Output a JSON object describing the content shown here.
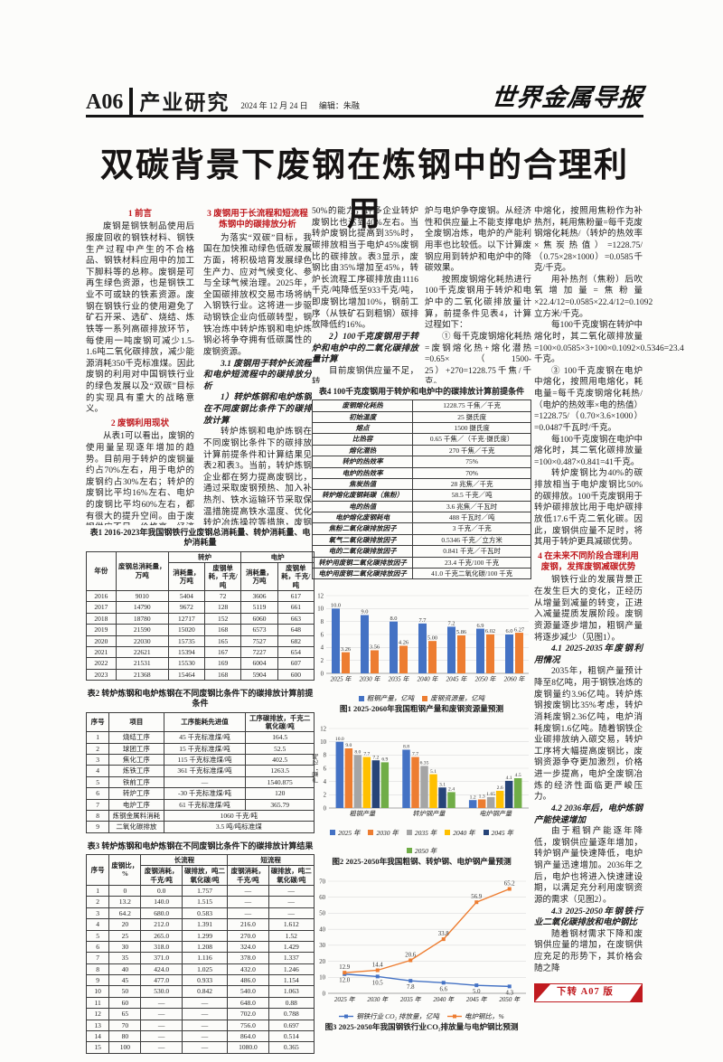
{
  "page": {
    "number": "A06",
    "section": "产业研究",
    "date": "2024 年 12 月 24 日",
    "editor": "编辑：朱融",
    "masthead": "世界金属导报",
    "title": "双碳背景下废钢在炼钢中的合理利用",
    "continuation": "下转 A07 版"
  },
  "colors": {
    "heading_red": "#c01a1f",
    "bar_blue": "#4472C4",
    "bar_orange": "#ED7D31",
    "bar_gray": "#A5A5A5",
    "bar_gold": "#FFC000",
    "bar_navy": "#264478",
    "bar_green": "#70AD47"
  },
  "columns": {
    "col1": [
      {
        "t": "h",
        "x": "1 前言"
      },
      {
        "t": "p",
        "x": "废钢是钢铁制品使用后报废回收的钢铁材料、钢铁生产过程中产生的不合格品、钢铁材料应用中的加工下脚料等的总称。废钢是可再生绿色资源，也是钢铁工业不可或缺的铁素资源。废钢在钢铁行业的使用避免了矿石开采、选矿、烧结、炼铁等一系列高碳排放环节，每使用一吨废钢可减少1.5-1.6吨二氧化碳排放，减少能源消耗350千克标准煤。因此废钢的利用对中国钢铁行业的绿色发展以及“双碳”目标的实现具有重大的战略意义。"
      },
      {
        "t": "h",
        "x": "2 废钢利用现状"
      },
      {
        "t": "p",
        "x": "从表1可以看出，废钢的使用量呈现逐年增加的趋势。目前用于转炉的废钢量约占70%左右，用于电炉的废钢约占30%左右；转炉的废钢比平均16%左右、电炉的废钢比平均60%左右，都有很大的提升空间。由于废钢供应不足，价格高，经济性差，造成电炉配加大比例的铁水。"
      }
    ],
    "col2": [
      {
        "t": "h",
        "x": "3 废钢用于长流程和短流程炼钢中的碳排放分析"
      },
      {
        "t": "p",
        "x": "为落实“双碳”目标，我国在加快推动绿色低碳发展方面，将积极培育发展绿色生产力、应对气候变化、参与全球气候治理。2025年，全国碳排放权交易市场将纳入钢铁行业。这将进一步驱动钢铁企业向低碳转型，钢铁冶炼中转炉炼钢和电炉炼钢必将争夺拥有低碳属性的废钢资源。"
      },
      {
        "t": "s",
        "x": "3.1 废钢用于转炉长流程和电炉短流程中的碳排放分析"
      },
      {
        "t": "s",
        "x": "1）转炉炼钢和电炉炼钢在不同废钢比条件下的碳排放计算"
      },
      {
        "t": "p",
        "x": "转炉炼钢和电炉炼钢在不同废钢比条件下的碳排放计算前提条件和计算结果见表2和表3。当前，转炉炼钢企业都在努力提高废钢比，通过采取废钢预热、加入补热剂、铁水运输环节采取保温措施提高铁水温度、优化转炉冶炼操控等措施，废钢比大幅提升。据报道，先进企业废钢比已达到"
      }
    ],
    "col3": [
      {
        "t": "c",
        "x": "50%的能力，许多企业转炉废钢比也达到40%左右。当转炉废钢比提高到35%时，碳排放相当于电炉45%废钢比的碳排放。表3显示，废钢比由35%增加至45%，转炉长流程工序碳排放由1116千克/吨降低至933千克/吨，即废钢比增加10%，钢前工序（从铁矿石到粗钢）碳排放降低约16%。"
      },
      {
        "t": "s",
        "x": "2）100千克废钢用于转炉和电炉中的二氧化碳排放量计算"
      },
      {
        "t": "p",
        "x": "目前废钢供应量不足，转"
      }
    ],
    "col4": [
      {
        "t": "c",
        "x": "炉与电炉争夺废钢。从经济性和供应量上不能支撑电炉全废钢冶炼，电炉的产能利用率也比较低。以下计算废钢应用到转炉和电炉中的降碳效果。"
      },
      {
        "t": "p",
        "x": "按照废钢熔化耗热进行100千克废钢用于转炉和电炉中的二氧化碳排放量计算，前提条件见表4，计算过程如下："
      },
      {
        "t": "p",
        "x": "① 每千克废钢熔化耗热=废钢熔化热+熔化潜热=0.65×（1500-25）+270=1228.75千焦/千克。"
      },
      {
        "t": "p",
        "x": "② 100千克废钢在转炉"
      }
    ],
    "col5": [
      {
        "t": "c",
        "x": "中熔化，按照用焦粉作为补热剂，耗用焦粉量=每千克废钢熔化耗热/（转炉的热效率×焦炭热值）=1228.75/（0.75×28×1000）=0.0585千克/千克。"
      },
      {
        "t": "p",
        "x": "用补热剂（焦粉）后吹氧增加量=焦粉量×22.4/12=0.0585×22.4/12=0.1092立方米/千克。"
      },
      {
        "t": "p",
        "x": "每100千克废钢在转炉中熔化时，其二氧化碳排放量=100×0.0585×3+100×0.1092×0.5346=23.4千克。"
      },
      {
        "t": "p",
        "x": "③ 100千克废钢在电炉中熔化，按照用电熔化，耗电量=每千克废钢熔化耗热/（电炉的热效率×电的热值）=1228.75/（0.70×3.6×1000）=0.0487千瓦时/千克。"
      },
      {
        "t": "p",
        "x": "每100千克废钢在电炉中熔化时，其二氧化碳排放量=100×0.487×0.841=41千克。"
      },
      {
        "t": "p",
        "x": "转炉废钢比为40%的碳排放相当于电炉废钢比50%的碳排放。100千克废钢用于转炉碳排放比用于电炉碳排放低17.6千克二氧化碳。因此，废钢供应量不足时，将其用于转炉更具减碳优势。"
      },
      {
        "t": "h",
        "x": "4 在未来不同阶段合理利用废钢，发挥废钢减碳优势"
      },
      {
        "t": "p",
        "x": "钢铁行业的发展背景正在发生巨大的变化，正经历从增量到减量的转变，正进入减量提质发展阶段。废钢资源量逐步增加，粗钢产量将逐步减少（见图1）。"
      },
      {
        "t": "s",
        "x": "4.1 2025-2035年废钢利用情况"
      },
      {
        "t": "p",
        "x": "2035年，粗钢产量预计降至8亿吨，用于钢铁冶炼的废钢量约3.96亿吨。转炉炼钢按废钢比35%考虑，转炉消耗废钢2.36亿吨，电炉消耗废钢1.6亿吨。随着钢铁企业碳排放纳入碳交易，转炉工序将大幅提高废钢比，废钢资源争夺更加激烈，价格进一步提高，电炉全废钢冶炼的经济性面临更严峻压力。"
      },
      {
        "t": "s",
        "x": "4.2 2036年后，电炉炼钢产能快速增加"
      },
      {
        "t": "p",
        "x": "由于粗钢产能逐年降低，废钢供应量逐年增加，转炉钢产量快速降低，电炉钢产量迅速增加。2036年之后，电炉也将进入快速建设期，以满足充分利用废钢资源的需求（见图2）。"
      },
      {
        "t": "s",
        "x": "4.3 2025-2050年钢铁行业二氧化碳排放和电炉钢比"
      },
      {
        "t": "p",
        "x": "随着钢材需求下降和废钢供应量的增加，在废钢供应充足的形势下，其价格会随之降"
      }
    ]
  },
  "tables": {
    "t1": {
      "title": "表1 2016-2023年我国钢铁行业废钢总消耗量、转炉消耗量、电炉消耗量",
      "top": [
        "年份",
        "废钢总消耗量，万吨",
        "转炉",
        "电炉"
      ],
      "sub": [
        "消耗量，万吨",
        "废钢单耗，千克/吨",
        "消耗量，万吨",
        "废钢单耗，千克/吨"
      ],
      "rows": [
        [
          "2016",
          "9010",
          "5404",
          "72",
          "3606",
          "617"
        ],
        [
          "2017",
          "14790",
          "9672",
          "128",
          "5119",
          "661"
        ],
        [
          "2018",
          "18780",
          "12717",
          "152",
          "6060",
          "663"
        ],
        [
          "2019",
          "21590",
          "15020",
          "168",
          "6573",
          "648"
        ],
        [
          "2020",
          "22030",
          "15735",
          "165",
          "7527",
          "682"
        ],
        [
          "2021",
          "22621",
          "15394",
          "167",
          "7227",
          "654"
        ],
        [
          "2022",
          "21531",
          "15530",
          "169",
          "6004",
          "607"
        ],
        [
          "2023",
          "21368",
          "15464",
          "168",
          "5904",
          "600"
        ]
      ]
    },
    "t2": {
      "title": "表2 转炉炼钢和电炉炼钢在不同废钢比条件下的碳排放计算前提条件",
      "header": [
        "序号",
        "项目",
        "工序能耗先进值",
        "工序碳排放，千克二氧化碳/吨"
      ],
      "rows": [
        [
          "1",
          "烧结工序",
          "45 千克标准煤/吨",
          "164.5"
        ],
        [
          "2",
          "球团工序",
          "15 千克标准煤/吨",
          "52.5"
        ],
        [
          "3",
          "焦化工序",
          "115 千克标准煤/吨",
          "402.5"
        ],
        [
          "4",
          "炼铁工序",
          "361 千克标准煤/吨",
          "1263.5"
        ],
        [
          "5",
          "铁前工序",
          "—",
          "1540.875"
        ],
        [
          "6",
          "转炉工序",
          "-30 千克标准煤/吨",
          "120"
        ],
        [
          "7",
          "电炉工序",
          "61 千克标准煤/吨",
          "365.79"
        ],
        [
          "8",
          "炼钢金属料消耗",
          "1060 千克/吨"
        ],
        [
          "9",
          "二氧化碳排放",
          "3.5 吨/吨标准煤"
        ]
      ]
    },
    "t3": {
      "title": "表3 转炉炼钢和电炉炼钢在不同废钢比条件下的碳排放计算结果",
      "top": [
        "序号",
        "废钢比，%",
        "长流程",
        "短流程"
      ],
      "sub": [
        "废钢消耗，千克/吨",
        "碳排放，吨二氧化碳/吨",
        "废钢消耗，千克/吨",
        "碳排放，吨二氧化碳/吨"
      ],
      "rows": [
        [
          "1",
          "0",
          "0.0",
          "1.757",
          "—",
          "—"
        ],
        [
          "2",
          "13.2",
          "140.0",
          "1.515",
          "—",
          "—"
        ],
        [
          "3",
          "64.2",
          "680.0",
          "0.583",
          "—",
          "—"
        ],
        [
          "4",
          "20",
          "212.0",
          "1.391",
          "216.0",
          "1.612"
        ],
        [
          "5",
          "25",
          "265.0",
          "1.299",
          "270.0",
          "1.52"
        ],
        [
          "6",
          "30",
          "318.0",
          "1.208",
          "324.0",
          "1.429"
        ],
        [
          "7",
          "35",
          "371.0",
          "1.116",
          "378.0",
          "1.337"
        ],
        [
          "8",
          "40",
          "424.0",
          "1.025",
          "432.0",
          "1.246"
        ],
        [
          "9",
          "45",
          "477.0",
          "0.933",
          "486.0",
          "1.154"
        ],
        [
          "10",
          "50",
          "530.0",
          "0.842",
          "540.0",
          "1.063"
        ],
        [
          "11",
          "60",
          "—",
          "—",
          "648.0",
          "0.88"
        ],
        [
          "12",
          "65",
          "—",
          "—",
          "702.0",
          "0.788"
        ],
        [
          "13",
          "70",
          "—",
          "—",
          "756.0",
          "0.697"
        ],
        [
          "14",
          "80",
          "—",
          "—",
          "864.0",
          "0.514"
        ],
        [
          "15",
          "100",
          "—",
          "—",
          "1080.0",
          "0.365"
        ]
      ]
    },
    "t4": {
      "title": "表4 100千克废钢用于转炉和电炉中的碳排放计算前提条件",
      "rows": [
        [
          "废钢熔化耗热",
          "1228.75 千焦／千克"
        ],
        [
          "初始温度",
          "25 摄氏度"
        ],
        [
          "熔点",
          "1500 摄氏度"
        ],
        [
          "比热容",
          "0.65 千焦／（千克·摄氏度）"
        ],
        [
          "熔化潜热",
          "270 千焦／千克"
        ],
        [
          "转炉的热效率",
          "75%"
        ],
        [
          "电炉的热效率",
          "70%"
        ],
        [
          "焦炭热值",
          "28 兆焦／千克"
        ],
        [
          "转炉熔化废钢耗碳（焦粉）",
          "58.5 千克／吨"
        ],
        [
          "电的热值",
          "3.6 兆焦／千瓦时"
        ],
        [
          "电炉熔化废钢耗电",
          "488 千瓦时／吨"
        ],
        [
          "焦粉二氧化碳排放因子",
          "3 千克／千克"
        ],
        [
          "氧气二氧化碳排放因子",
          "0.5346 千克／立方米"
        ],
        [
          "电的二氧化碳排放因子",
          "0.841 千克／千瓦时"
        ],
        [
          "转炉用废钢二氧化碳排放因子",
          "23.4 千克/100 千克"
        ],
        [
          "电炉用废钢二氧化碳排放因子",
          "41.0 千克二氧化碳/100 千克"
        ]
      ]
    }
  },
  "chart_data": [
    {
      "type": "bar",
      "title": "图1 2025-2060年我国粗钢产量和废钢资源量预测",
      "categories": [
        "2025 年",
        "2030 年",
        "2035 年",
        "2040 年",
        "2045 年",
        "2050 年",
        "2060 年"
      ],
      "series": [
        {
          "name": "粗钢产量，亿吨",
          "color": "#4472C4",
          "values": [
            10.0,
            9.0,
            8.0,
            7.7,
            7.2,
            6.9,
            6.0
          ],
          "labels": [
            "10.0",
            "9.0",
            "8.0",
            "7.7",
            "7.2",
            "6.9",
            "6.0"
          ]
        },
        {
          "name": "废钢资源量，亿吨",
          "color": "#ED7D31",
          "values": [
            3.26,
            3.56,
            4.26,
            5.0,
            5.86,
            6.02,
            6.27
          ],
          "labels": [
            "3.26",
            "3.56",
            "4.26",
            "5.00",
            "5.86",
            "6.02",
            "6.27"
          ]
        }
      ],
      "ylim": [
        0,
        12
      ],
      "ytick": 2,
      "grid": true,
      "legend_position": "bottom",
      "ylabel": ""
    },
    {
      "type": "bar",
      "title": "图2 2025-2050年我国粗钢、转炉钢、电炉钢产量预测",
      "categories": [
        "粗钢产量",
        "转炉钢产量",
        "电炉钢产量"
      ],
      "series": [
        {
          "name": "2025 年",
          "color": "#4472C4",
          "values": [
            10.0,
            8.8,
            1.2
          ],
          "labels": [
            "10.0",
            "8.8",
            "1.2"
          ]
        },
        {
          "name": "2030 年",
          "color": "#ED7D31",
          "values": [
            9.0,
            7.7,
            1.3
          ],
          "labels": [
            "9.0",
            "7.7",
            "1.3"
          ]
        },
        {
          "name": "2035 年",
          "color": "#A5A5A5",
          "values": [
            8.0,
            6.35,
            1.65
          ],
          "labels": [
            "8.0",
            "6.35",
            "1.65"
          ]
        },
        {
          "name": "2040 年",
          "color": "#FFC000",
          "values": [
            7.7,
            5.1,
            2.6
          ],
          "labels": [
            "7.7",
            "5.1",
            "2.6"
          ]
        },
        {
          "name": "2045 年",
          "color": "#264478",
          "values": [
            7.2,
            3.1,
            4.1
          ],
          "labels": [
            "7.2",
            "3.1",
            "4.1"
          ]
        },
        {
          "name": "2050 年",
          "color": "#70AD47",
          "values": [
            6.9,
            2.4,
            4.5
          ],
          "labels": [
            "6.9",
            "2.4",
            "4.5"
          ]
        }
      ],
      "ylim": [
        0,
        12
      ],
      "ytick": 2,
      "grid": true,
      "legend_position": "bottom",
      "ylabel": "产量，亿吨"
    },
    {
      "type": "line",
      "title": "图3 2025-2050年我国钢铁行业CO₂排放量与电炉钢比预测",
      "categories": [
        "2025 年",
        "2030 年",
        "2035 年",
        "2040 年",
        "2045 年",
        "2050 年"
      ],
      "series": [
        {
          "name": "钢铁行业 CO₂ 排放量，亿吨",
          "color": "#4472C4",
          "values": [
            12.0,
            10.5,
            7.8,
            6.6,
            5.0,
            4.3
          ],
          "labels": [
            "12.0",
            "10.5",
            "7.8",
            "6.6",
            "5.0",
            "4.3"
          ],
          "label_pos": "below"
        },
        {
          "name": "电炉钢比，%",
          "color": "#ED7D31",
          "values": [
            12.9,
            14.4,
            20.6,
            33.8,
            56.9,
            65.2
          ],
          "labels": [
            "12.9",
            "14.4",
            "20.6",
            "33.8",
            "56.9",
            "65.2"
          ],
          "label_pos": "above"
        }
      ],
      "ylim": [
        0,
        70
      ],
      "ytick": 10,
      "grid": true,
      "legend_position": "bottom"
    }
  ]
}
